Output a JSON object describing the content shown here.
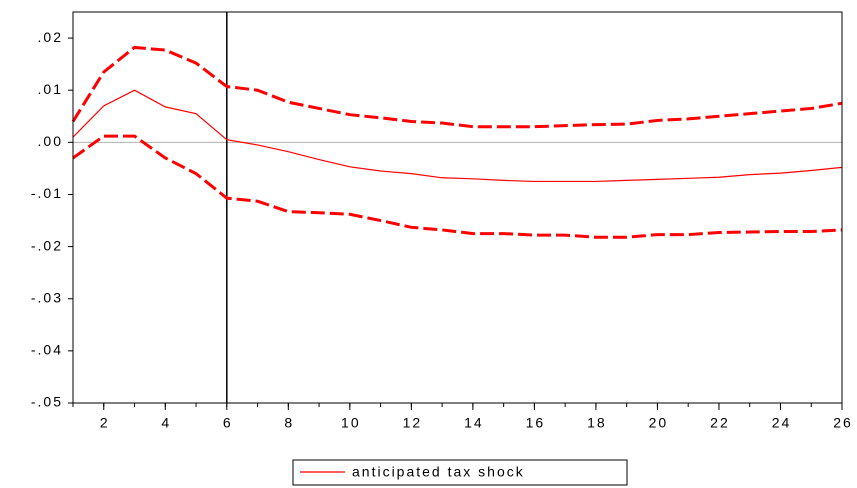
{
  "chart_data": {
    "type": "line",
    "x": [
      1,
      2,
      3,
      4,
      5,
      6,
      7,
      8,
      9,
      10,
      11,
      12,
      13,
      14,
      15,
      16,
      17,
      18,
      19,
      20,
      21,
      22,
      23,
      24,
      25,
      26
    ],
    "series": [
      {
        "name": "anticipated tax shock",
        "color": "#ff0000",
        "dashed": false,
        "values": [
          0.001,
          0.007,
          0.01,
          0.0068,
          0.0055,
          0.0005,
          -0.0005,
          -0.0018,
          -0.0033,
          -0.0047,
          -0.0055,
          -0.006,
          -0.0068,
          -0.007,
          -0.0073,
          -0.0075,
          -0.0075,
          -0.0075,
          -0.0073,
          -0.0071,
          -0.0069,
          -0.0067,
          -0.0062,
          -0.0059,
          -0.0054,
          -0.0048
        ]
      },
      {
        "color": "#ff0000",
        "dashed": true,
        "values": [
          0.004,
          0.0135,
          0.0182,
          0.0177,
          0.0152,
          0.0107,
          0.01,
          0.0077,
          0.0065,
          0.0053,
          0.0047,
          0.004,
          0.0037,
          0.003,
          0.003,
          0.003,
          0.0032,
          0.0034,
          0.0035,
          0.0042,
          0.0045,
          0.005,
          0.0055,
          0.006,
          0.0065,
          0.0075
        ]
      },
      {
        "color": "#ff0000",
        "dashed": true,
        "values": [
          -0.003,
          0.0012,
          0.0012,
          -0.003,
          -0.006,
          -0.0107,
          -0.0113,
          -0.0133,
          -0.0135,
          -0.0138,
          -0.015,
          -0.0163,
          -0.0168,
          -0.0175,
          -0.0175,
          -0.0178,
          -0.0178,
          -0.0182,
          -0.0182,
          -0.0177,
          -0.0177,
          -0.0173,
          -0.0172,
          -0.0171,
          -0.0171,
          -0.0168
        ]
      }
    ],
    "xlim": [
      1,
      26
    ],
    "xticks": [
      2,
      4,
      6,
      8,
      10,
      12,
      14,
      16,
      18,
      20,
      22,
      24,
      26
    ],
    "ylim": [
      -0.05,
      0.025
    ],
    "yticks": [
      {
        "value": 0.02,
        "label": ".02"
      },
      {
        "value": 0.01,
        "label": ".01"
      },
      {
        "value": 0,
        "label": ".00"
      },
      {
        "value": -0.01,
        "label": "-.01"
      },
      {
        "value": -0.02,
        "label": "-.02"
      },
      {
        "value": -0.03,
        "label": "-.03"
      },
      {
        "value": -0.04,
        "label": "-.04"
      },
      {
        "value": -0.05,
        "label": "-.05"
      }
    ],
    "hline": 0,
    "vline": 6,
    "legend": "bottom"
  }
}
